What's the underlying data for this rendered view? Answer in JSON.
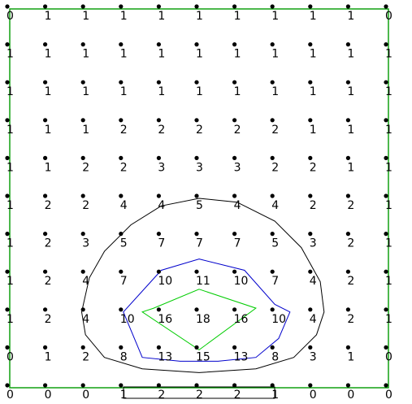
{
  "grid": {
    "rows": [
      [
        0,
        1,
        1,
        1,
        1,
        1,
        1,
        1,
        1,
        1,
        0
      ],
      [
        1,
        1,
        1,
        1,
        1,
        1,
        1,
        1,
        1,
        1,
        1
      ],
      [
        1,
        1,
        1,
        1,
        1,
        1,
        1,
        1,
        1,
        1,
        1
      ],
      [
        1,
        1,
        1,
        2,
        2,
        2,
        2,
        2,
        1,
        1,
        1
      ],
      [
        1,
        1,
        2,
        2,
        3,
        3,
        3,
        2,
        2,
        1,
        1
      ],
      [
        1,
        2,
        2,
        4,
        4,
        5,
        4,
        4,
        2,
        2,
        1
      ],
      [
        1,
        2,
        3,
        5,
        7,
        7,
        7,
        5,
        3,
        2,
        1
      ],
      [
        1,
        2,
        4,
        7,
        10,
        11,
        10,
        7,
        4,
        2,
        1
      ],
      [
        1,
        2,
        4,
        10,
        16,
        18,
        16,
        10,
        4,
        2,
        1
      ],
      [
        0,
        1,
        2,
        8,
        13,
        15,
        13,
        8,
        3,
        1,
        0
      ],
      [
        0,
        0,
        0,
        1,
        2,
        2,
        2,
        1,
        0,
        0,
        0
      ]
    ],
    "x_range": [
      0,
      10
    ],
    "y_range": [
      0,
      10
    ]
  },
  "contours": [
    {
      "color": "#000000",
      "points": [
        [
          5,
          5
        ],
        [
          6,
          5.1
        ],
        [
          7,
          5.6
        ],
        [
          7.7,
          6.3
        ],
        [
          8.2,
          7.2
        ],
        [
          8.3,
          8
        ],
        [
          8.1,
          8.6
        ],
        [
          7.5,
          9.2
        ],
        [
          6.5,
          9.5
        ],
        [
          5,
          9.6
        ],
        [
          3.5,
          9.5
        ],
        [
          2.5,
          9.2
        ],
        [
          2,
          8.6
        ],
        [
          1.9,
          8
        ],
        [
          2.1,
          7.1
        ],
        [
          2.5,
          6.4
        ],
        [
          3.2,
          5.7
        ],
        [
          4,
          5.2
        ]
      ]
    },
    {
      "color": "#0000cc",
      "points": [
        [
          5,
          6.6
        ],
        [
          6.2,
          6.9
        ],
        [
          7,
          7.8
        ],
        [
          7.4,
          8
        ],
        [
          7.1,
          8.7
        ],
        [
          6.5,
          9.2
        ],
        [
          5.5,
          9.3
        ],
        [
          4.5,
          9.3
        ],
        [
          3.5,
          9.2
        ],
        [
          3,
          8
        ],
        [
          4,
          6.9
        ]
      ]
    },
    {
      "color": "#00cc00",
      "points": [
        [
          5,
          7.4
        ],
        [
          6.5,
          7.9
        ],
        [
          5,
          9
        ],
        [
          3.5,
          8
        ],
        [
          3.8,
          7.9
        ]
      ]
    }
  ],
  "colors": {
    "border": "#009900",
    "marker": "#000000",
    "label": "#000000"
  }
}
